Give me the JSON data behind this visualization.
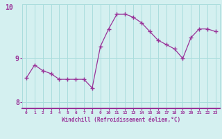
{
  "x": [
    0,
    1,
    2,
    3,
    4,
    5,
    6,
    7,
    8,
    9,
    10,
    11,
    12,
    13,
    14,
    15,
    16,
    17,
    18,
    19,
    20,
    21,
    22,
    23
  ],
  "y": [
    8.55,
    8.85,
    8.72,
    8.65,
    8.52,
    8.52,
    8.52,
    8.52,
    8.32,
    9.28,
    9.68,
    10.02,
    10.02,
    9.95,
    9.82,
    9.62,
    9.42,
    9.32,
    9.22,
    9.0,
    9.48,
    9.68,
    9.68,
    9.62
  ],
  "line_color": "#993399",
  "marker": "+",
  "bg_color": "#d4f0f0",
  "grid_color": "#aadddd",
  "xlabel": "Windchill (Refroidissement éolien,°C)",
  "ylim": [
    7.85,
    10.25
  ],
  "xlim": [
    -0.5,
    23.5
  ],
  "yticks": [
    8,
    9
  ],
  "ytick_labels": [
    "8",
    "9"
  ],
  "xtick_labels": [
    "0",
    "1",
    "2",
    "3",
    "4",
    "5",
    "6",
    "7",
    "8",
    "9",
    "10",
    "11",
    "12",
    "13",
    "14",
    "15",
    "16",
    "17",
    "18",
    "19",
    "20",
    "21",
    "22",
    "23"
  ],
  "font_color": "#993399",
  "spine_color": "#993399",
  "top_label": "10"
}
